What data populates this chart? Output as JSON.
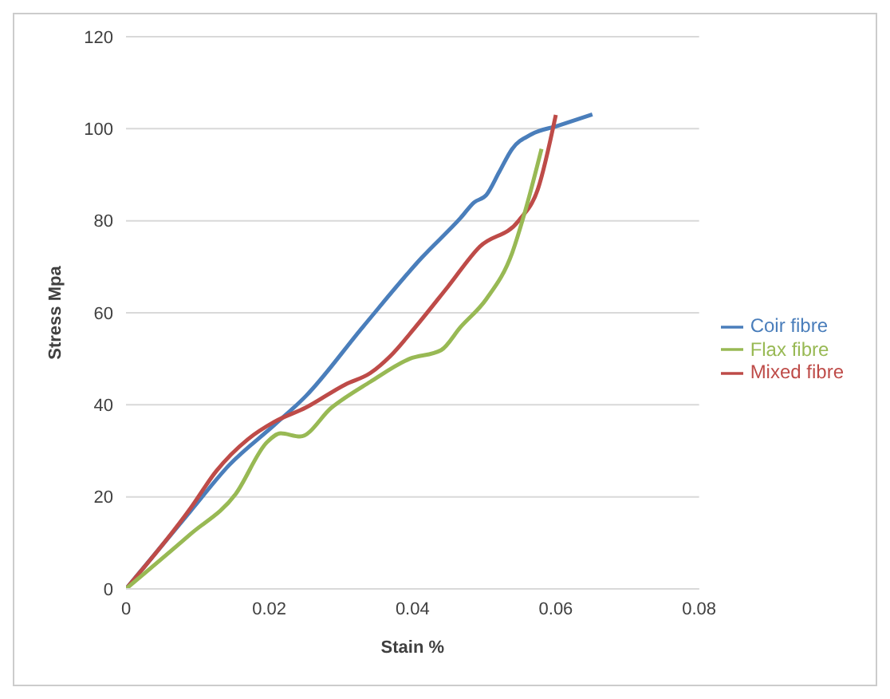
{
  "chart_data": {
    "type": "line",
    "xlabel": "Stain %",
    "ylabel": "Stress Mpa",
    "xlim": [
      0,
      0.08
    ],
    "xticks": [
      0,
      0.02,
      0.04,
      0.06,
      0.08
    ],
    "ylim": [
      0,
      120
    ],
    "yticks": [
      0,
      20,
      40,
      60,
      80,
      100,
      120
    ],
    "grid": "y",
    "legend": "right",
    "marker": "none",
    "series": [
      {
        "name": "Coir fibre",
        "color": "#4a7ebb",
        "x": [
          0,
          0.009,
          0.0144,
          0.0207,
          0.0251,
          0.0331,
          0.0413,
          0.0467,
          0.0486,
          0.0503,
          0.0521,
          0.0539,
          0.0566,
          0.0602,
          0.0651
        ],
        "values": [
          0,
          16.9,
          26.9,
          35.6,
          41.9,
          57,
          72,
          80.6,
          84,
          85.6,
          90.6,
          95.6,
          98.8,
          100.6,
          103.1
        ]
      },
      {
        "name": "Mixed fibre",
        "color": "#be4b48",
        "x": [
          0,
          0.009,
          0.0126,
          0.017,
          0.0207,
          0.0251,
          0.0306,
          0.0341,
          0.0369,
          0.0404,
          0.0449,
          0.0494,
          0.0548,
          0.0575,
          0.06
        ],
        "values": [
          0,
          17.5,
          25.6,
          32.5,
          36.3,
          39.4,
          44.4,
          46.9,
          50.6,
          56.9,
          65.6,
          74.4,
          80,
          86.9,
          103
        ]
      },
      {
        "name": "Flax fibre",
        "color": "#98b954",
        "x": [
          0,
          0.009,
          0.0153,
          0.0197,
          0.0216,
          0.0243,
          0.0287,
          0.0341,
          0.0396,
          0.044,
          0.0467,
          0.0503,
          0.0539,
          0.0557,
          0.058
        ],
        "values": [
          0,
          11.9,
          20.6,
          31.9,
          33.8,
          33.1,
          39.4,
          45,
          50,
          51.9,
          56.9,
          63,
          73,
          82,
          95.6
        ]
      }
    ]
  }
}
